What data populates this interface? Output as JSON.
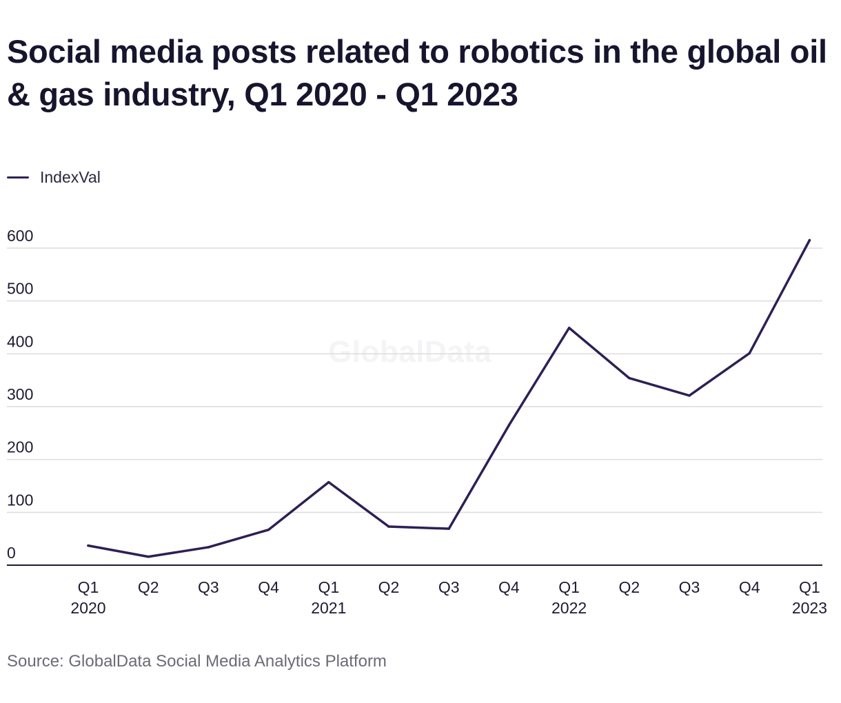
{
  "title": "Social media posts related to robotics in the global oil & gas industry, Q1 2020 - Q1 2023",
  "legend": {
    "label": "IndexVal"
  },
  "watermark": "GlobalData",
  "source": "Source: GlobalData Social Media Analytics Platform",
  "colors": {
    "series": "#2e1f55",
    "grid": "#dcdcdc",
    "axis": "#1c1a33",
    "text": "#1c1a33",
    "source": "#6b6a78"
  },
  "chart_data": {
    "type": "line",
    "title": "Social media posts related to robotics in the global oil & gas industry, Q1 2020 - Q1 2023",
    "x": [
      [
        "Q1",
        "2020"
      ],
      [
        "Q2",
        ""
      ],
      [
        "Q3",
        ""
      ],
      [
        "Q4",
        ""
      ],
      [
        "Q1",
        "2021"
      ],
      [
        "Q2",
        ""
      ],
      [
        "Q3",
        ""
      ],
      [
        "Q4",
        ""
      ],
      [
        "Q1",
        "2022"
      ],
      [
        "Q2",
        ""
      ],
      [
        "Q3",
        ""
      ],
      [
        "Q4",
        ""
      ],
      [
        "Q1",
        "2023"
      ]
    ],
    "series": [
      {
        "name": "IndexVal",
        "values": [
          37,
          16,
          34,
          67,
          157,
          73,
          69,
          265,
          449,
          354,
          321,
          401,
          615
        ]
      }
    ],
    "yticks": [
      0,
      100,
      200,
      300,
      400,
      500,
      600
    ],
    "ylim": [
      0,
      600
    ],
    "grid": true,
    "legend_position": "top-left",
    "xlabel": "",
    "ylabel": ""
  }
}
